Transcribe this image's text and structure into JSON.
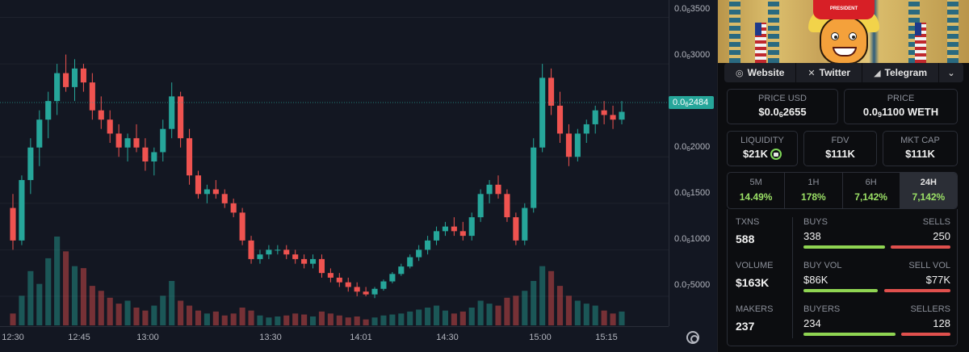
{
  "chart": {
    "y_ticks": [
      {
        "prefix": "0.0",
        "sub": "6",
        "rest": "3500"
      },
      {
        "prefix": "0.0",
        "sub": "6",
        "rest": "3000"
      },
      {
        "prefix": "0.0",
        "sub": "6",
        "rest": "2000"
      },
      {
        "prefix": "0.0",
        "sub": "6",
        "rest": "1500"
      },
      {
        "prefix": "0.0",
        "sub": "6",
        "rest": "1000"
      },
      {
        "prefix": "0.0",
        "sub": "7",
        "rest": "5000"
      }
    ],
    "current_price": {
      "prefix": "0.0",
      "sub": "6",
      "rest": "2484"
    },
    "x_ticks": [
      "12:30",
      "12:45",
      "13:00",
      "13:30",
      "14:01",
      "14:30",
      "15:00",
      "15:15"
    ],
    "colors": {
      "up": "#26a69a",
      "down": "#ef5350"
    }
  },
  "chart_data": {
    "type": "candlestick",
    "unit_note": "price in units of 1e-10",
    "ylim": [
      300,
      3600
    ],
    "ohlc": [
      [
        1450,
        1600,
        1000,
        1100
      ],
      [
        1100,
        1800,
        1050,
        1750
      ],
      [
        1750,
        2200,
        1600,
        2100
      ],
      [
        2100,
        2500,
        1900,
        2400
      ],
      [
        2400,
        2700,
        2200,
        2600
      ],
      [
        2600,
        3000,
        2450,
        2900
      ],
      [
        2900,
        3100,
        2700,
        2750
      ],
      [
        2750,
        3050,
        2600,
        2950
      ],
      [
        2950,
        3000,
        2700,
        2800
      ],
      [
        2800,
        2900,
        2400,
        2500
      ],
      [
        2500,
        2650,
        2300,
        2400
      ],
      [
        2400,
        2500,
        2150,
        2250
      ],
      [
        2250,
        2350,
        2000,
        2100
      ],
      [
        2100,
        2250,
        1950,
        2200
      ],
      [
        2200,
        2350,
        2050,
        2100
      ],
      [
        2100,
        2200,
        1850,
        1950
      ],
      [
        1950,
        2100,
        1800,
        2050
      ],
      [
        2050,
        2400,
        1950,
        2300
      ],
      [
        2300,
        2800,
        2200,
        2650
      ],
      [
        2650,
        2700,
        2100,
        2200
      ],
      [
        2200,
        2300,
        1700,
        1800
      ],
      [
        1800,
        1850,
        1550,
        1600
      ],
      [
        1600,
        1700,
        1500,
        1650
      ],
      [
        1650,
        1750,
        1550,
        1600
      ],
      [
        1600,
        1650,
        1450,
        1500
      ],
      [
        1500,
        1550,
        1350,
        1400
      ],
      [
        1400,
        1450,
        1050,
        1100
      ],
      [
        1100,
        1150,
        850,
        900
      ],
      [
        900,
        1000,
        850,
        950
      ],
      [
        950,
        1050,
        900,
        1000
      ],
      [
        1000,
        1050,
        950,
        1000
      ],
      [
        1000,
        1050,
        900,
        950
      ],
      [
        950,
        1000,
        850,
        900
      ],
      [
        900,
        950,
        800,
        850
      ],
      [
        850,
        950,
        800,
        900
      ],
      [
        900,
        950,
        700,
        750
      ],
      [
        750,
        800,
        650,
        700
      ],
      [
        700,
        750,
        600,
        650
      ],
      [
        650,
        700,
        550,
        600
      ],
      [
        600,
        650,
        500,
        550
      ],
      [
        550,
        600,
        500,
        520
      ],
      [
        520,
        600,
        480,
        580
      ],
      [
        580,
        680,
        560,
        660
      ],
      [
        660,
        760,
        640,
        740
      ],
      [
        740,
        850,
        720,
        820
      ],
      [
        820,
        950,
        800,
        920
      ],
      [
        920,
        1050,
        880,
        1000
      ],
      [
        1000,
        1150,
        950,
        1100
      ],
      [
        1100,
        1250,
        1050,
        1200
      ],
      [
        1200,
        1300,
        1150,
        1250
      ],
      [
        1250,
        1350,
        1150,
        1200
      ],
      [
        1200,
        1300,
        1100,
        1150
      ],
      [
        1150,
        1400,
        1100,
        1350
      ],
      [
        1350,
        1650,
        1300,
        1600
      ],
      [
        1600,
        1750,
        1500,
        1700
      ],
      [
        1700,
        1800,
        1550,
        1600
      ],
      [
        1600,
        1650,
        1300,
        1350
      ],
      [
        1350,
        1400,
        1050,
        1100
      ],
      [
        1100,
        1500,
        1050,
        1450
      ],
      [
        1450,
        2200,
        1400,
        2100
      ],
      [
        2100,
        3000,
        2050,
        2850
      ],
      [
        2850,
        2950,
        2450,
        2550
      ],
      [
        2550,
        2700,
        2150,
        2250
      ],
      [
        2250,
        2350,
        1900,
        2000
      ],
      [
        2000,
        2300,
        1950,
        2250
      ],
      [
        2250,
        2400,
        2150,
        2350
      ],
      [
        2350,
        2550,
        2250,
        2500
      ],
      [
        2500,
        2600,
        2350,
        2450
      ],
      [
        2450,
        2550,
        2300,
        2400
      ],
      [
        2400,
        2600,
        2350,
        2484
      ]
    ],
    "volume": [
      12,
      30,
      55,
      42,
      68,
      90,
      75,
      60,
      58,
      40,
      35,
      28,
      22,
      25,
      18,
      15,
      20,
      30,
      45,
      25,
      20,
      15,
      12,
      14,
      10,
      12,
      18,
      15,
      10,
      8,
      9,
      10,
      12,
      11,
      9,
      14,
      12,
      10,
      8,
      9,
      6,
      8,
      10,
      11,
      12,
      14,
      16,
      18,
      20,
      15,
      12,
      14,
      18,
      25,
      22,
      20,
      28,
      30,
      35,
      45,
      60,
      55,
      40,
      30,
      25,
      22,
      20,
      15,
      12,
      14
    ]
  },
  "panel": {
    "banner_hat_text": "PRESIDENT",
    "links": [
      {
        "icon": "◎",
        "label": "Website"
      },
      {
        "icon": "✕",
        "label": "Twitter"
      },
      {
        "icon": "◢",
        "label": "Telegram"
      },
      {
        "icon": "⌄",
        "label": ""
      }
    ],
    "price_usd": {
      "label": "PRICE USD",
      "prefix": "$0.0",
      "sub": "6",
      "rest": "2655"
    },
    "price_native": {
      "label": "PRICE",
      "prefix": "0.0",
      "sub": "9",
      "rest": "1100 WETH"
    },
    "liquidity": {
      "label": "LIQUIDITY",
      "value": "$21K"
    },
    "fdv": {
      "label": "FDV",
      "value": "$111K"
    },
    "mkt_cap": {
      "label": "MKT CAP",
      "value": "$111K"
    },
    "tabs": [
      {
        "label": "5M",
        "value": "14.49%"
      },
      {
        "label": "1H",
        "value": "178%"
      },
      {
        "label": "6H",
        "value": "7,142%"
      },
      {
        "label": "24H",
        "value": "7,142%"
      }
    ],
    "stats": [
      {
        "left_label": "TXNS",
        "left_value": "588",
        "r_label_a": "BUYS",
        "r_label_b": "SELLS",
        "r_val_a": "338",
        "r_val_b": "250",
        "green_frac": 0.575
      },
      {
        "left_label": "VOLUME",
        "left_value": "$163K",
        "r_label_a": "BUY VOL",
        "r_label_b": "SELL VOL",
        "r_val_a": "$86K",
        "r_val_b": "$77K",
        "green_frac": 0.527
      },
      {
        "left_label": "MAKERS",
        "left_value": "237",
        "r_label_a": "BUYERS",
        "r_label_b": "SELLERS",
        "r_val_a": "234",
        "r_val_b": "128",
        "green_frac": 0.646
      }
    ]
  }
}
